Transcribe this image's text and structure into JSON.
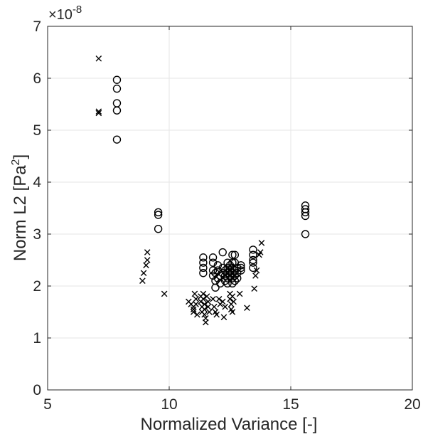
{
  "chart_data": {
    "type": "scatter",
    "title": "",
    "xlabel": "Normalized Variance [-]",
    "ylabel_main": "Norm L2 [Pa",
    "ylabel_sup": "2",
    "ylabel_end": "]",
    "y_exponent_base": "×10",
    "y_exponent_power": "-8",
    "xlim": [
      5,
      20
    ],
    "ylim": [
      0,
      7
    ],
    "xticks": [
      5,
      10,
      15,
      20
    ],
    "yticks": [
      0,
      1,
      2,
      3,
      4,
      5,
      6,
      7
    ],
    "xtick_labels": [
      "5",
      "10",
      "15",
      "20"
    ],
    "ytick_labels": [
      "0",
      "1",
      "2",
      "3",
      "4",
      "5",
      "6",
      "7"
    ],
    "grid": true,
    "legend": "none",
    "series": [
      {
        "marker": "circle",
        "points": [
          [
            7.85,
            5.97
          ],
          [
            7.85,
            5.8
          ],
          [
            7.85,
            5.52
          ],
          [
            7.85,
            5.38
          ],
          [
            7.85,
            4.82
          ],
          [
            9.55,
            3.42
          ],
          [
            9.55,
            3.37
          ],
          [
            9.55,
            3.1
          ],
          [
            11.4,
            2.55
          ],
          [
            11.4,
            2.45
          ],
          [
            11.4,
            2.35
          ],
          [
            11.4,
            2.25
          ],
          [
            11.8,
            2.55
          ],
          [
            11.8,
            2.45
          ],
          [
            11.8,
            2.3
          ],
          [
            11.8,
            2.2
          ],
          [
            11.9,
            2.25
          ],
          [
            11.9,
            2.1
          ],
          [
            11.9,
            1.97
          ],
          [
            12.0,
            2.4
          ],
          [
            12.0,
            2.3
          ],
          [
            12.0,
            2.15
          ],
          [
            12.1,
            2.2
          ],
          [
            12.1,
            2.05
          ],
          [
            12.2,
            2.65
          ],
          [
            12.2,
            2.35
          ],
          [
            12.2,
            2.25
          ],
          [
            12.3,
            2.3
          ],
          [
            12.3,
            2.2
          ],
          [
            12.3,
            2.1
          ],
          [
            12.4,
            2.45
          ],
          [
            12.4,
            2.35
          ],
          [
            12.4,
            2.25
          ],
          [
            12.4,
            2.15
          ],
          [
            12.4,
            2.05
          ],
          [
            12.5,
            2.4
          ],
          [
            12.5,
            2.3
          ],
          [
            12.5,
            2.2
          ],
          [
            12.6,
            2.6
          ],
          [
            12.6,
            2.45
          ],
          [
            12.6,
            2.35
          ],
          [
            12.6,
            2.25
          ],
          [
            12.6,
            2.15
          ],
          [
            12.6,
            2.05
          ],
          [
            12.7,
            2.6
          ],
          [
            12.7,
            2.45
          ],
          [
            12.7,
            2.3
          ],
          [
            12.7,
            2.2
          ],
          [
            12.7,
            2.1
          ],
          [
            12.8,
            2.35
          ],
          [
            12.8,
            2.25
          ],
          [
            12.8,
            2.15
          ],
          [
            12.95,
            2.4
          ],
          [
            12.95,
            2.35
          ],
          [
            12.95,
            2.3
          ],
          [
            13.45,
            2.7
          ],
          [
            13.45,
            2.6
          ],
          [
            13.45,
            2.5
          ],
          [
            13.45,
            2.45
          ],
          [
            13.45,
            2.35
          ],
          [
            15.6,
            3.55
          ],
          [
            15.6,
            3.48
          ],
          [
            15.6,
            3.42
          ],
          [
            15.6,
            3.35
          ],
          [
            15.6,
            3.0
          ]
        ]
      },
      {
        "marker": "cross",
        "points": [
          [
            7.1,
            6.38
          ],
          [
            7.1,
            5.36
          ],
          [
            7.1,
            5.33
          ],
          [
            8.9,
            2.1
          ],
          [
            8.95,
            2.25
          ],
          [
            9.05,
            2.4
          ],
          [
            9.1,
            2.5
          ],
          [
            9.1,
            2.65
          ],
          [
            9.8,
            1.85
          ],
          [
            10.8,
            1.7
          ],
          [
            10.9,
            1.65
          ],
          [
            11.0,
            1.6
          ],
          [
            11.0,
            1.55
          ],
          [
            11.0,
            1.5
          ],
          [
            11.05,
            1.85
          ],
          [
            11.1,
            1.75
          ],
          [
            11.1,
            1.65
          ],
          [
            11.15,
            1.45
          ],
          [
            11.3,
            1.8
          ],
          [
            11.3,
            1.7
          ],
          [
            11.35,
            1.6
          ],
          [
            11.35,
            1.5
          ],
          [
            11.4,
            1.85
          ],
          [
            11.4,
            1.75
          ],
          [
            11.45,
            1.65
          ],
          [
            11.45,
            1.55
          ],
          [
            11.45,
            1.45
          ],
          [
            11.5,
            1.38
          ],
          [
            11.5,
            1.3
          ],
          [
            11.55,
            1.8
          ],
          [
            11.6,
            1.7
          ],
          [
            11.6,
            1.6
          ],
          [
            11.65,
            1.5
          ],
          [
            11.8,
            1.75
          ],
          [
            11.85,
            1.6
          ],
          [
            11.9,
            1.5
          ],
          [
            11.95,
            1.45
          ],
          [
            12.05,
            1.75
          ],
          [
            12.1,
            1.65
          ],
          [
            12.2,
            1.7
          ],
          [
            12.25,
            1.4
          ],
          [
            12.3,
            1.6
          ],
          [
            12.5,
            1.85
          ],
          [
            12.5,
            1.75
          ],
          [
            12.55,
            1.65
          ],
          [
            12.55,
            1.55
          ],
          [
            12.6,
            1.5
          ],
          [
            12.6,
            1.8
          ],
          [
            12.65,
            1.7
          ],
          [
            12.9,
            1.85
          ],
          [
            13.2,
            1.58
          ],
          [
            13.5,
            1.95
          ],
          [
            13.55,
            2.2
          ],
          [
            13.6,
            2.3
          ],
          [
            13.7,
            2.6
          ],
          [
            13.75,
            2.65
          ],
          [
            13.8,
            2.83
          ]
        ]
      }
    ]
  }
}
